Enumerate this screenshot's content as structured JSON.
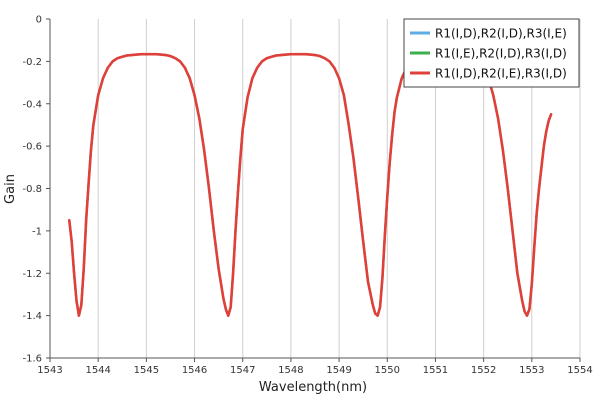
{
  "chart_data": {
    "type": "line",
    "title": "",
    "xlabel": "Wavelength(nm)",
    "ylabel": "Gain",
    "xlim": [
      1543,
      1554
    ],
    "ylim": [
      -1.6,
      0
    ],
    "xticks": [
      1543,
      1544,
      1545,
      1546,
      1547,
      1548,
      1549,
      1550,
      1551,
      1552,
      1553,
      1554
    ],
    "xtick_labels": [
      "1543",
      "1544",
      "1545",
      "1546",
      "1547",
      "1548",
      "1549",
      "1550",
      "1551",
      "1552",
      "1553",
      "1554"
    ],
    "yticks": [
      0,
      -0.2,
      -0.4,
      -0.6,
      -0.8,
      -1,
      -1.2,
      -1.4,
      -1.6
    ],
    "ytick_labels": [
      "0",
      "-0.2",
      "-0.4",
      "-0.6",
      "-0.8",
      "-1",
      "-1.2",
      "-1.4",
      "-1.6"
    ],
    "grid": {
      "x": true,
      "y": false
    },
    "legend_position": "top-right",
    "series": [
      {
        "name": "R1(I,D),R2(I,D),R3(I,E)",
        "color": "#5dade2",
        "x": [
          1543.4,
          1543.45,
          1543.5,
          1543.55,
          1543.6,
          1543.65,
          1543.7,
          1543.75,
          1543.8,
          1543.85,
          1543.9,
          1544.0,
          1544.1,
          1544.2,
          1544.3,
          1544.4,
          1544.5,
          1544.6,
          1544.7,
          1544.8,
          1544.9,
          1545.0,
          1545.1,
          1545.2,
          1545.3,
          1545.4,
          1545.5,
          1545.6,
          1545.7,
          1545.8,
          1545.9,
          1546.0,
          1546.1,
          1546.2,
          1546.3,
          1546.4,
          1546.5,
          1546.6,
          1546.65,
          1546.7,
          1546.75,
          1546.8,
          1546.85,
          1546.9,
          1546.95,
          1547.0,
          1547.1,
          1547.2,
          1547.3,
          1547.4,
          1547.5,
          1547.6,
          1547.7,
          1547.8,
          1547.9,
          1548.0,
          1548.1,
          1548.2,
          1548.3,
          1548.4,
          1548.5,
          1548.6,
          1548.7,
          1548.8,
          1548.9,
          1549.0,
          1549.1,
          1549.2,
          1549.3,
          1549.4,
          1549.5,
          1549.6,
          1549.7,
          1549.75,
          1549.8,
          1549.85,
          1549.9,
          1549.95,
          1550.0,
          1550.05,
          1550.1,
          1550.15,
          1550.2,
          1550.3,
          1550.4,
          1550.5,
          1550.6,
          1550.7,
          1550.8,
          1550.9,
          1551.0,
          1551.1,
          1551.2,
          1551.3,
          1551.4,
          1551.5,
          1551.6,
          1551.7,
          1551.8,
          1551.9,
          1552.0,
          1552.1,
          1552.2,
          1552.3,
          1552.4,
          1552.5,
          1552.6,
          1552.7,
          1552.8,
          1552.85,
          1552.9,
          1552.95,
          1553.0,
          1553.05,
          1553.1,
          1553.15,
          1553.2,
          1553.25,
          1553.3,
          1553.35,
          1553.4
        ],
        "y": [
          -0.95,
          -1.05,
          -1.2,
          -1.33,
          -1.4,
          -1.35,
          -1.18,
          -0.95,
          -0.78,
          -0.62,
          -0.5,
          -0.36,
          -0.28,
          -0.23,
          -0.2,
          -0.185,
          -0.178,
          -0.172,
          -0.17,
          -0.168,
          -0.166,
          -0.166,
          -0.166,
          -0.166,
          -0.168,
          -0.17,
          -0.175,
          -0.185,
          -0.2,
          -0.23,
          -0.28,
          -0.36,
          -0.47,
          -0.62,
          -0.8,
          -1.0,
          -1.18,
          -1.32,
          -1.37,
          -1.4,
          -1.36,
          -1.2,
          -1.0,
          -0.82,
          -0.66,
          -0.52,
          -0.37,
          -0.28,
          -0.23,
          -0.2,
          -0.185,
          -0.178,
          -0.172,
          -0.17,
          -0.168,
          -0.166,
          -0.166,
          -0.166,
          -0.166,
          -0.168,
          -0.17,
          -0.175,
          -0.185,
          -0.2,
          -0.23,
          -0.28,
          -0.36,
          -0.5,
          -0.66,
          -0.85,
          -1.05,
          -1.24,
          -1.35,
          -1.39,
          -1.4,
          -1.36,
          -1.22,
          -1.02,
          -0.84,
          -0.68,
          -0.55,
          -0.44,
          -0.37,
          -0.28,
          -0.23,
          -0.2,
          -0.185,
          -0.178,
          -0.172,
          -0.17,
          -0.168,
          -0.166,
          -0.166,
          -0.166,
          -0.166,
          -0.168,
          -0.17,
          -0.175,
          -0.185,
          -0.2,
          -0.23,
          -0.28,
          -0.36,
          -0.47,
          -0.62,
          -0.8,
          -1.0,
          -1.2,
          -1.33,
          -1.38,
          -1.4,
          -1.37,
          -1.25,
          -1.08,
          -0.92,
          -0.8,
          -0.7,
          -0.6,
          -0.53,
          -0.48,
          -0.45
        ]
      },
      {
        "name": "R1(I,E),R2(I,D),R3(I,D)",
        "color": "#3cae4a",
        "x": [
          1543.4,
          1543.45,
          1543.5,
          1543.55,
          1543.6,
          1543.65,
          1543.7,
          1543.75,
          1543.8,
          1543.85,
          1543.9,
          1544.0,
          1544.1,
          1544.2,
          1544.3,
          1544.4,
          1544.5,
          1544.6,
          1544.7,
          1544.8,
          1544.9,
          1545.0,
          1545.1,
          1545.2,
          1545.3,
          1545.4,
          1545.5,
          1545.6,
          1545.7,
          1545.8,
          1545.9,
          1546.0,
          1546.1,
          1546.2,
          1546.3,
          1546.4,
          1546.5,
          1546.6,
          1546.65,
          1546.7,
          1546.75,
          1546.8,
          1546.85,
          1546.9,
          1546.95,
          1547.0,
          1547.1,
          1547.2,
          1547.3,
          1547.4,
          1547.5,
          1547.6,
          1547.7,
          1547.8,
          1547.9,
          1548.0,
          1548.1,
          1548.2,
          1548.3,
          1548.4,
          1548.5,
          1548.6,
          1548.7,
          1548.8,
          1548.9,
          1549.0,
          1549.1,
          1549.2,
          1549.3,
          1549.4,
          1549.5,
          1549.6,
          1549.7,
          1549.75,
          1549.8,
          1549.85,
          1549.9,
          1549.95,
          1550.0,
          1550.05,
          1550.1,
          1550.15,
          1550.2,
          1550.3,
          1550.4,
          1550.5,
          1550.6,
          1550.7,
          1550.8,
          1550.9,
          1551.0,
          1551.1,
          1551.2,
          1551.3,
          1551.4,
          1551.5,
          1551.6,
          1551.7,
          1551.8,
          1551.9,
          1552.0,
          1552.1,
          1552.2,
          1552.3,
          1552.4,
          1552.5,
          1552.6,
          1552.7,
          1552.8,
          1552.85,
          1552.9,
          1552.95,
          1553.0,
          1553.05,
          1553.1,
          1553.15,
          1553.2,
          1553.25,
          1553.3,
          1553.35,
          1553.4
        ],
        "y": [
          -0.95,
          -1.05,
          -1.2,
          -1.33,
          -1.4,
          -1.35,
          -1.18,
          -0.95,
          -0.78,
          -0.62,
          -0.5,
          -0.36,
          -0.28,
          -0.23,
          -0.2,
          -0.185,
          -0.178,
          -0.172,
          -0.17,
          -0.168,
          -0.166,
          -0.166,
          -0.166,
          -0.166,
          -0.168,
          -0.17,
          -0.175,
          -0.185,
          -0.2,
          -0.23,
          -0.28,
          -0.36,
          -0.47,
          -0.62,
          -0.8,
          -1.0,
          -1.18,
          -1.32,
          -1.37,
          -1.4,
          -1.36,
          -1.2,
          -1.0,
          -0.82,
          -0.66,
          -0.52,
          -0.37,
          -0.28,
          -0.23,
          -0.2,
          -0.185,
          -0.178,
          -0.172,
          -0.17,
          -0.168,
          -0.166,
          -0.166,
          -0.166,
          -0.166,
          -0.168,
          -0.17,
          -0.175,
          -0.185,
          -0.2,
          -0.23,
          -0.28,
          -0.36,
          -0.5,
          -0.66,
          -0.85,
          -1.05,
          -1.24,
          -1.35,
          -1.39,
          -1.4,
          -1.36,
          -1.22,
          -1.02,
          -0.84,
          -0.68,
          -0.55,
          -0.44,
          -0.37,
          -0.28,
          -0.23,
          -0.2,
          -0.185,
          -0.178,
          -0.172,
          -0.17,
          -0.168,
          -0.166,
          -0.166,
          -0.166,
          -0.166,
          -0.168,
          -0.17,
          -0.175,
          -0.185,
          -0.2,
          -0.23,
          -0.28,
          -0.36,
          -0.47,
          -0.62,
          -0.8,
          -1.0,
          -1.2,
          -1.33,
          -1.38,
          -1.4,
          -1.37,
          -1.25,
          -1.08,
          -0.92,
          -0.8,
          -0.7,
          -0.6,
          -0.53,
          -0.48,
          -0.45
        ]
      },
      {
        "name": "R1(I,D),R2(I,E),R3(I,D)",
        "color": "#e0403a",
        "x": [
          1543.4,
          1543.45,
          1543.5,
          1543.55,
          1543.6,
          1543.65,
          1543.7,
          1543.75,
          1543.8,
          1543.85,
          1543.9,
          1544.0,
          1544.1,
          1544.2,
          1544.3,
          1544.4,
          1544.5,
          1544.6,
          1544.7,
          1544.8,
          1544.9,
          1545.0,
          1545.1,
          1545.2,
          1545.3,
          1545.4,
          1545.5,
          1545.6,
          1545.7,
          1545.8,
          1545.9,
          1546.0,
          1546.1,
          1546.2,
          1546.3,
          1546.4,
          1546.5,
          1546.6,
          1546.65,
          1546.7,
          1546.75,
          1546.8,
          1546.85,
          1546.9,
          1546.95,
          1547.0,
          1547.1,
          1547.2,
          1547.3,
          1547.4,
          1547.5,
          1547.6,
          1547.7,
          1547.8,
          1547.9,
          1548.0,
          1548.1,
          1548.2,
          1548.3,
          1548.4,
          1548.5,
          1548.6,
          1548.7,
          1548.8,
          1548.9,
          1549.0,
          1549.1,
          1549.2,
          1549.3,
          1549.4,
          1549.5,
          1549.6,
          1549.7,
          1549.75,
          1549.8,
          1549.85,
          1549.9,
          1549.95,
          1550.0,
          1550.05,
          1550.1,
          1550.15,
          1550.2,
          1550.3,
          1550.4,
          1550.5,
          1550.6,
          1550.7,
          1550.8,
          1550.9,
          1551.0,
          1551.1,
          1551.2,
          1551.3,
          1551.4,
          1551.5,
          1551.6,
          1551.7,
          1551.8,
          1551.9,
          1552.0,
          1552.1,
          1552.2,
          1552.3,
          1552.4,
          1552.5,
          1552.6,
          1552.7,
          1552.8,
          1552.85,
          1552.9,
          1552.95,
          1553.0,
          1553.05,
          1553.1,
          1553.15,
          1553.2,
          1553.25,
          1553.3,
          1553.35,
          1553.4
        ],
        "y": [
          -0.95,
          -1.05,
          -1.2,
          -1.33,
          -1.4,
          -1.35,
          -1.18,
          -0.95,
          -0.78,
          -0.62,
          -0.5,
          -0.36,
          -0.28,
          -0.23,
          -0.2,
          -0.185,
          -0.178,
          -0.172,
          -0.17,
          -0.168,
          -0.166,
          -0.166,
          -0.166,
          -0.166,
          -0.168,
          -0.17,
          -0.175,
          -0.185,
          -0.2,
          -0.23,
          -0.28,
          -0.36,
          -0.47,
          -0.62,
          -0.8,
          -1.0,
          -1.18,
          -1.32,
          -1.37,
          -1.4,
          -1.36,
          -1.2,
          -1.0,
          -0.82,
          -0.66,
          -0.52,
          -0.37,
          -0.28,
          -0.23,
          -0.2,
          -0.185,
          -0.178,
          -0.172,
          -0.17,
          -0.168,
          -0.166,
          -0.166,
          -0.166,
          -0.166,
          -0.168,
          -0.17,
          -0.175,
          -0.185,
          -0.2,
          -0.23,
          -0.28,
          -0.36,
          -0.5,
          -0.66,
          -0.85,
          -1.05,
          -1.24,
          -1.35,
          -1.39,
          -1.4,
          -1.36,
          -1.22,
          -1.02,
          -0.84,
          -0.68,
          -0.55,
          -0.44,
          -0.37,
          -0.28,
          -0.23,
          -0.2,
          -0.185,
          -0.178,
          -0.172,
          -0.17,
          -0.168,
          -0.166,
          -0.166,
          -0.166,
          -0.166,
          -0.168,
          -0.17,
          -0.175,
          -0.185,
          -0.2,
          -0.23,
          -0.28,
          -0.36,
          -0.47,
          -0.62,
          -0.8,
          -1.0,
          -1.2,
          -1.33,
          -1.38,
          -1.4,
          -1.37,
          -1.25,
          -1.08,
          -0.92,
          -0.8,
          -0.7,
          -0.6,
          -0.53,
          -0.48,
          -0.45
        ]
      }
    ]
  }
}
